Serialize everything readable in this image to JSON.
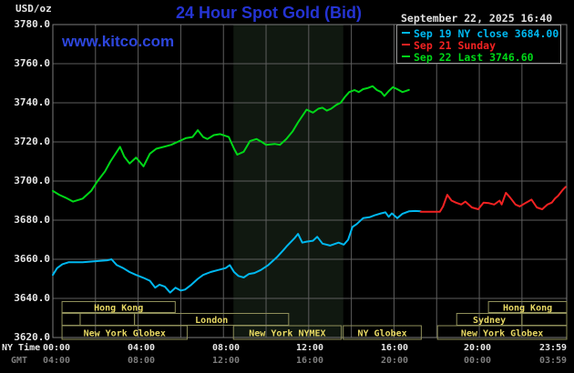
{
  "header": {
    "units_label": "USD/oz",
    "title": "24 Hour Spot Gold (Bid)",
    "datetime": "September 22, 2025 16:40",
    "watermark": "www.kitco.com"
  },
  "legend": {
    "items": [
      {
        "label": "Sep 19 NY close 3684.00",
        "color": "#00b8f0"
      },
      {
        "label": "Sep 21 Sunday",
        "color": "#f22222"
      },
      {
        "label": "Sep 22 Last 3746.60",
        "color": "#00d818"
      }
    ]
  },
  "y_axis": {
    "ticks": [
      "3780.0",
      "3760.0",
      "3740.0",
      "3720.0",
      "3700.0",
      "3680.0",
      "3660.0",
      "3640.0",
      "3620.0"
    ]
  },
  "x_axis": {
    "ny_time_label": "NY Time",
    "gmt_label": "GMT",
    "ny_ticks": [
      "00:00",
      "04:00",
      "08:00",
      "12:00",
      "16:00",
      "20:00",
      "23:59"
    ],
    "gmt_ticks": [
      "04:00",
      "08:00",
      "12:00",
      "16:00",
      "20:00",
      "00:00",
      "03:59"
    ]
  },
  "colors": {
    "background": "#000000",
    "grid": "#5e5e5e",
    "border": "#7d7d7d",
    "band": "#101810",
    "session_border": "#8f8f5a",
    "session_text": "#e8d964",
    "title_blue": "#2534d4",
    "kitco_blue": "#2d46dd",
    "axis_text": "#e6e6e6",
    "gmt_text": "#7d7d7d",
    "cyan": "#00b8f0",
    "red": "#f22222",
    "green": "#00d818",
    "legend_border": "#989898"
  },
  "sessions": {
    "rows": [
      {
        "boxes": [
          {
            "label": "Hong Kong",
            "start": 0.43,
            "end": 5.74
          },
          {
            "label": "Hong Kong",
            "start": 20.43,
            "end": 24.1
          }
        ]
      },
      {
        "boxes": [
          {
            "label": "",
            "start": 0.43,
            "end": 1.28
          },
          {
            "label": "",
            "start": 1.28,
            "end": 3.83
          },
          {
            "label": "London",
            "start": 3.83,
            "end": 11.06
          },
          {
            "label": "Sydney",
            "start": 18.94,
            "end": 22.0
          },
          {
            "label": "",
            "start": 22.0,
            "end": 24.1
          }
        ]
      },
      {
        "boxes": [
          {
            "label": "New York Globex",
            "start": 0.43,
            "end": 6.3
          },
          {
            "label": "New York NYMEX",
            "start": 8.47,
            "end": 13.53
          },
          {
            "label": "NY Globex",
            "start": 13.62,
            "end": 17.28
          },
          {
            "label": "New York Globex",
            "start": 18.04,
            "end": 24.1
          }
        ]
      }
    ]
  },
  "chart_data": {
    "type": "line",
    "title": "24 Hour Spot Gold (Bid)",
    "ylabel": "USD/oz",
    "x_unit": "hours NY time",
    "xlim": [
      0,
      24.1
    ],
    "ylim": [
      3620,
      3780
    ],
    "y_tick_step": 20,
    "x_tick_step_hours": 4,
    "grid": true,
    "legend_position": "top-right",
    "nymex_band": {
      "start_hour": 8.47,
      "end_hour": 13.62,
      "color": "#101810"
    },
    "series": [
      {
        "name": "Sep 22 Last",
        "last_value": 3746.6,
        "color": "#00d818",
        "points": [
          [
            0,
            3695
          ],
          [
            0.3,
            3693
          ],
          [
            0.6,
            3691.5
          ],
          [
            0.95,
            3689.5
          ],
          [
            1.4,
            3691
          ],
          [
            1.8,
            3695
          ],
          [
            2.1,
            3700
          ],
          [
            2.45,
            3705
          ],
          [
            2.7,
            3710
          ],
          [
            3.0,
            3715
          ],
          [
            3.15,
            3717.5
          ],
          [
            3.35,
            3712.5
          ],
          [
            3.6,
            3709
          ],
          [
            3.9,
            3712
          ],
          [
            4.1,
            3709.5
          ],
          [
            4.25,
            3707.5
          ],
          [
            4.55,
            3714
          ],
          [
            4.85,
            3716.5
          ],
          [
            5.2,
            3717.5
          ],
          [
            5.55,
            3718.5
          ],
          [
            5.85,
            3720
          ],
          [
            6.25,
            3722
          ],
          [
            6.55,
            3722.5
          ],
          [
            6.8,
            3726
          ],
          [
            7.05,
            3722.5
          ],
          [
            7.25,
            3721.5
          ],
          [
            7.55,
            3723.5
          ],
          [
            7.85,
            3724
          ],
          [
            8.25,
            3722.5
          ],
          [
            8.5,
            3716.5
          ],
          [
            8.65,
            3713.5
          ],
          [
            8.95,
            3715
          ],
          [
            9.25,
            3720.5
          ],
          [
            9.55,
            3721.5
          ],
          [
            9.8,
            3720
          ],
          [
            10.0,
            3718.5
          ],
          [
            10.4,
            3719
          ],
          [
            10.65,
            3718.5
          ],
          [
            10.95,
            3721.5
          ],
          [
            11.25,
            3725.5
          ],
          [
            11.5,
            3730
          ],
          [
            11.9,
            3736.5
          ],
          [
            12.2,
            3735
          ],
          [
            12.45,
            3737
          ],
          [
            12.65,
            3737.5
          ],
          [
            12.85,
            3736
          ],
          [
            13.05,
            3737
          ],
          [
            13.3,
            3739
          ],
          [
            13.5,
            3740
          ],
          [
            13.7,
            3743
          ],
          [
            13.9,
            3745.5
          ],
          [
            14.15,
            3746.5
          ],
          [
            14.35,
            3745.5
          ],
          [
            14.55,
            3747
          ],
          [
            14.75,
            3747.5
          ],
          [
            15.0,
            3748.5
          ],
          [
            15.2,
            3746.5
          ],
          [
            15.4,
            3745.5
          ],
          [
            15.55,
            3743.5
          ],
          [
            15.75,
            3746
          ],
          [
            15.95,
            3748
          ],
          [
            16.15,
            3747
          ],
          [
            16.4,
            3745.5
          ],
          [
            16.55,
            3746
          ],
          [
            16.7,
            3746.6
          ]
        ]
      },
      {
        "name": "Sep 19 NY close",
        "last_value": 3684.0,
        "color": "#00b8f0",
        "points": [
          [
            0,
            3652
          ],
          [
            0.2,
            3655.5
          ],
          [
            0.45,
            3657.5
          ],
          [
            0.75,
            3658.5
          ],
          [
            1.4,
            3658.5
          ],
          [
            2.0,
            3659
          ],
          [
            2.55,
            3659.5
          ],
          [
            2.75,
            3660
          ],
          [
            3.0,
            3657
          ],
          [
            3.3,
            3655.5
          ],
          [
            3.6,
            3653.5
          ],
          [
            3.9,
            3652
          ],
          [
            4.25,
            3650.5
          ],
          [
            4.55,
            3649
          ],
          [
            4.8,
            3645.5
          ],
          [
            5.0,
            3647
          ],
          [
            5.25,
            3646
          ],
          [
            5.5,
            3643
          ],
          [
            5.75,
            3645.5
          ],
          [
            6.0,
            3644
          ],
          [
            6.2,
            3644.5
          ],
          [
            6.5,
            3647
          ],
          [
            6.8,
            3650
          ],
          [
            7.05,
            3652
          ],
          [
            7.4,
            3653.5
          ],
          [
            7.75,
            3654.5
          ],
          [
            8.1,
            3655.5
          ],
          [
            8.3,
            3657
          ],
          [
            8.5,
            3653.5
          ],
          [
            8.7,
            3651.5
          ],
          [
            8.95,
            3650.7
          ],
          [
            9.2,
            3652.5
          ],
          [
            9.45,
            3653
          ],
          [
            9.75,
            3654.5
          ],
          [
            10.1,
            3657
          ],
          [
            10.5,
            3661
          ],
          [
            10.8,
            3664.5
          ],
          [
            11.0,
            3667
          ],
          [
            11.35,
            3671
          ],
          [
            11.5,
            3673
          ],
          [
            11.7,
            3668.5
          ],
          [
            11.9,
            3669
          ],
          [
            12.2,
            3669.5
          ],
          [
            12.4,
            3671.5
          ],
          [
            12.65,
            3668
          ],
          [
            13.0,
            3667
          ],
          [
            13.4,
            3668.5
          ],
          [
            13.65,
            3667.5
          ],
          [
            13.85,
            3670
          ],
          [
            14.05,
            3676.5
          ],
          [
            14.25,
            3678
          ],
          [
            14.55,
            3681
          ],
          [
            14.85,
            3681.5
          ],
          [
            15.1,
            3682.5
          ],
          [
            15.4,
            3683.5
          ],
          [
            15.6,
            3684
          ],
          [
            15.75,
            3681.7
          ],
          [
            15.9,
            3683.5
          ],
          [
            16.15,
            3681
          ],
          [
            16.4,
            3683.3
          ],
          [
            16.7,
            3684.5
          ],
          [
            17.0,
            3684.7
          ],
          [
            17.25,
            3684.5
          ]
        ]
      },
      {
        "name": "Sep 21 Sunday",
        "color": "#f22222",
        "points": [
          [
            17.25,
            3684.3
          ],
          [
            18.15,
            3684.3
          ],
          [
            18.3,
            3687
          ],
          [
            18.4,
            3690
          ],
          [
            18.5,
            3693
          ],
          [
            18.7,
            3690
          ],
          [
            18.9,
            3689
          ],
          [
            19.15,
            3688
          ],
          [
            19.35,
            3689.5
          ],
          [
            19.65,
            3686.5
          ],
          [
            19.95,
            3685.6
          ],
          [
            20.2,
            3689
          ],
          [
            20.45,
            3688.7
          ],
          [
            20.7,
            3688
          ],
          [
            20.95,
            3690
          ],
          [
            21.05,
            3688
          ],
          [
            21.25,
            3694
          ],
          [
            21.45,
            3691.5
          ],
          [
            21.7,
            3688
          ],
          [
            21.9,
            3687
          ],
          [
            22.2,
            3689
          ],
          [
            22.45,
            3690.5
          ],
          [
            22.7,
            3686.5
          ],
          [
            22.95,
            3685.6
          ],
          [
            23.2,
            3688
          ],
          [
            23.4,
            3689
          ],
          [
            23.55,
            3691
          ],
          [
            23.7,
            3692.5
          ],
          [
            23.9,
            3695.3
          ],
          [
            24.05,
            3697
          ]
        ]
      }
    ]
  }
}
